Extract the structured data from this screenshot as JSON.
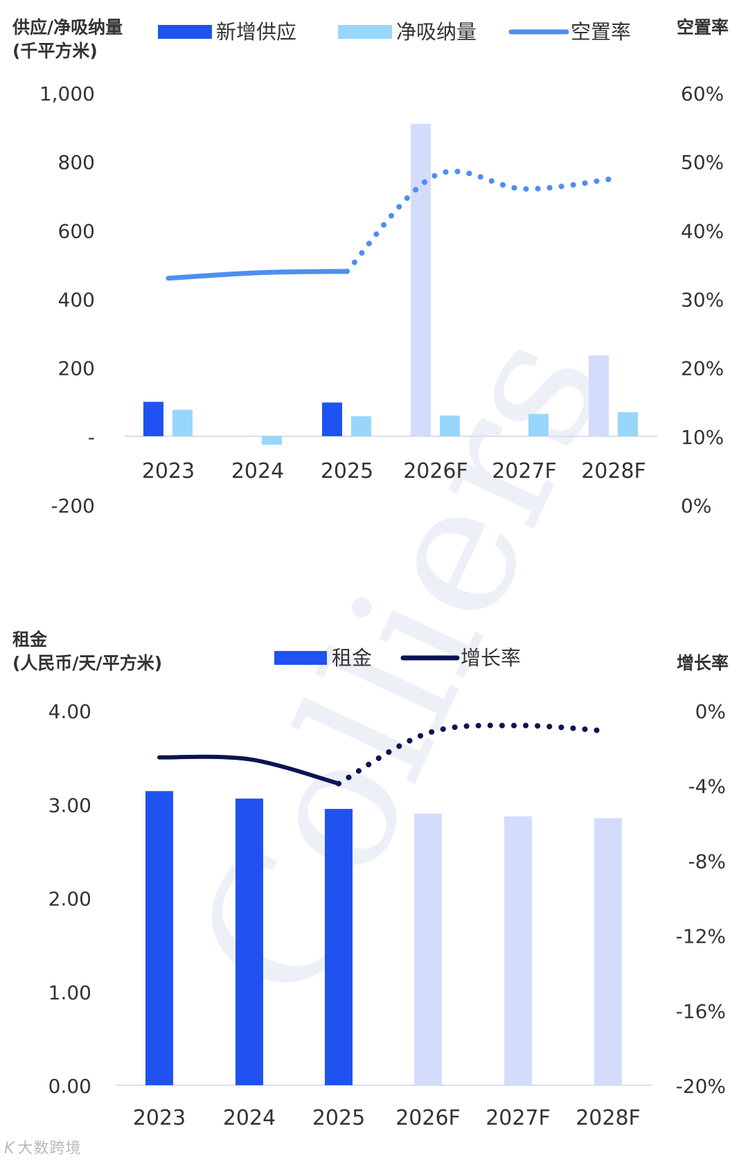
{
  "watermark": "Colliers",
  "footer_logo": {
    "mark": "K",
    "text": "大数跨境"
  },
  "colors": {
    "new_supply": "#1f52f0",
    "absorption": "#99d6fb",
    "forecast_bar": "#d3dcfb",
    "vacancy": "#4f8ef0",
    "rent": "#1f52f0",
    "growth": "#0b1452",
    "axis": "#d9dde8",
    "text": "#333333",
    "watermark": "#eef0f7"
  },
  "chart_data": [
    {
      "type": "bar",
      "id": "supply-chart",
      "ylabel_left_line1": "供应/净吸纳量",
      "ylabel_left_line2": "(千平方米)",
      "ylabel_right": "空置率",
      "left_ticks": [
        "1,000",
        "800",
        "600",
        "400",
        "200",
        "-",
        "-200"
      ],
      "left_tick_values": [
        1000,
        800,
        600,
        400,
        200,
        0,
        -200
      ],
      "right_ticks": [
        "60%",
        "50%",
        "40%",
        "30%",
        "20%",
        "10%",
        "0%"
      ],
      "ylim_left": [
        -200,
        1000
      ],
      "ylim_right": [
        0,
        60
      ],
      "categories": [
        "2023",
        "2024",
        "2025",
        "2026F",
        "2027F",
        "2028F"
      ],
      "legend_position": "top",
      "series": [
        {
          "name": "新增供应",
          "kind": "bar",
          "values": [
            100,
            0,
            98,
            910,
            0,
            235
          ]
        },
        {
          "name": "净吸纳量",
          "kind": "bar",
          "values": [
            77,
            -25,
            58,
            60,
            65,
            70
          ]
        },
        {
          "name": "空置率",
          "kind": "line",
          "axis": "right",
          "values": [
            33,
            33.8,
            34,
            48,
            46,
            47.5
          ],
          "dashed_from_index": 2
        }
      ],
      "forecast_from_index": 3
    },
    {
      "type": "bar",
      "id": "rent-chart",
      "ylabel_left_line1": "租金",
      "ylabel_left_line2": "(人民币/天/平方米)",
      "ylabel_right": "增长率",
      "left_ticks": [
        "4.00",
        "3.00",
        "2.00",
        "1.00",
        "0.00"
      ],
      "left_tick_values": [
        4,
        3,
        2,
        1,
        0
      ],
      "right_ticks": [
        "0%",
        "-4%",
        "-8%",
        "-12%",
        "-16%",
        "-20%"
      ],
      "ylim_left": [
        0,
        4
      ],
      "ylim_right": [
        -20,
        0
      ],
      "categories": [
        "2023",
        "2024",
        "2025",
        "2026F",
        "2027F",
        "2028F"
      ],
      "legend_position": "top",
      "series": [
        {
          "name": "租金",
          "kind": "bar",
          "values": [
            3.14,
            3.06,
            2.95,
            2.9,
            2.87,
            2.85
          ]
        },
        {
          "name": "增长率",
          "kind": "line",
          "axis": "right",
          "values": [
            -2.5,
            -2.6,
            -3.9,
            -1.2,
            -0.8,
            -1.1
          ],
          "dashed_from_index": 2
        }
      ],
      "forecast_from_index": 3
    }
  ]
}
